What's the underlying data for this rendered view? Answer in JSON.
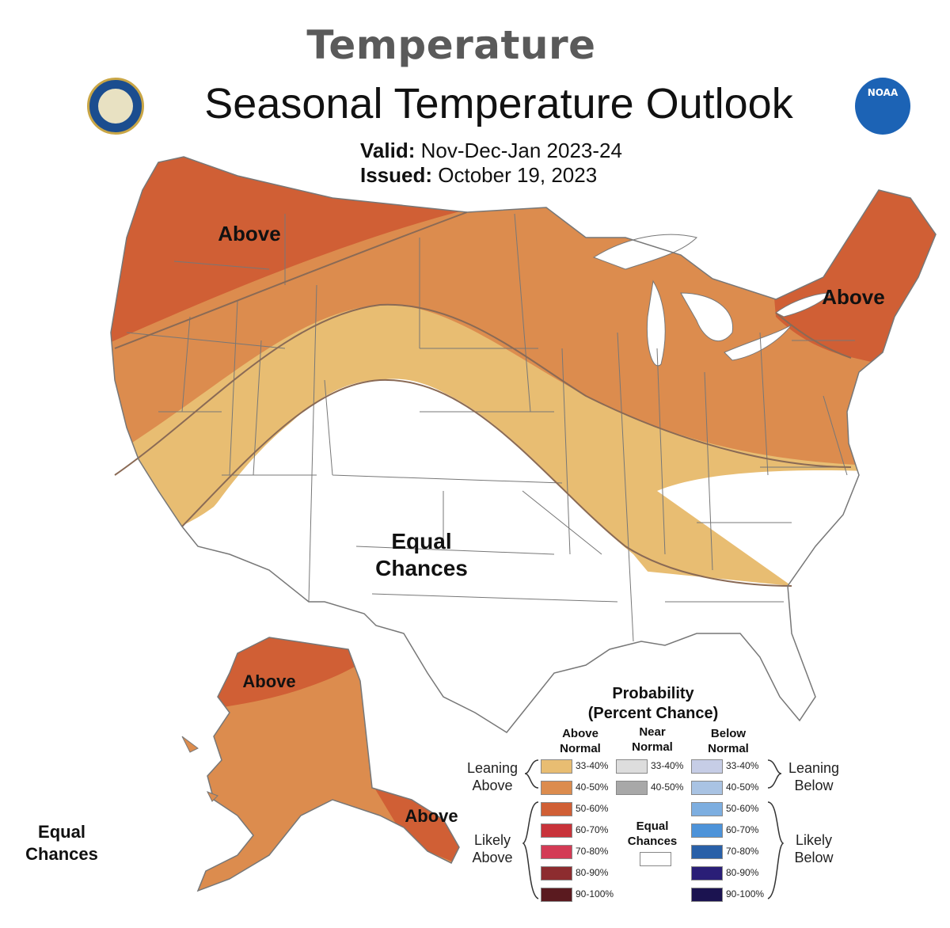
{
  "header": {
    "caption": "Temperature",
    "title": "Seasonal Temperature Outlook",
    "valid_label": "Valid:",
    "valid_value": "Nov-Dec-Jan 2023-24",
    "issued_label": "Issued:",
    "issued_value": "October 19, 2023"
  },
  "logos": {
    "left": "doc-seal-icon",
    "right": "noaa-logo-icon",
    "right_text": "NOAA"
  },
  "map_labels": {
    "west_above": "Above",
    "northeast_above": "Above",
    "equal_chances_line1": "Equal",
    "equal_chances_line2": "Chances",
    "alaska_north_above": "Above",
    "alaska_south_above": "Above",
    "alaska_equal_line1": "Equal",
    "alaska_equal_line2": "Chances"
  },
  "colors": {
    "above_33_40": "#e8bd72",
    "above_40_50": "#dc8c4e",
    "above_50_60": "#d05f35",
    "above_60_70": "#c8333a",
    "above_70_80": "#d33b55",
    "above_80_90": "#8d2c2f",
    "above_90_100": "#5a1a1f",
    "near_33_40": "#dddddd",
    "near_40_50": "#a8a8a8",
    "below_33_40": "#c6cde6",
    "below_40_50": "#a9c3e3",
    "below_50_60": "#7daee0",
    "below_60_70": "#4d93d9",
    "below_70_80": "#2960a8",
    "below_80_90": "#2a1e77",
    "below_90_100": "#1b1350",
    "state_lines": "#777777"
  },
  "legend": {
    "title_line1": "Probability",
    "title_line2": "(Percent Chance)",
    "col_above": [
      "Above",
      "Normal"
    ],
    "col_near": [
      "Near",
      "Normal"
    ],
    "col_below": [
      "Below",
      "Normal"
    ],
    "leaning_above": [
      "Leaning",
      "Above"
    ],
    "likely_above": [
      "Likely",
      "Above"
    ],
    "leaning_below": [
      "Leaning",
      "Below"
    ],
    "likely_below": [
      "Likely",
      "Below"
    ],
    "equal_chances": [
      "Equal",
      "Chances"
    ],
    "above_rows": [
      "33-40%",
      "40-50%",
      "50-60%",
      "60-70%",
      "70-80%",
      "80-90%",
      "90-100%"
    ],
    "near_rows": [
      "33-40%",
      "40-50%"
    ],
    "below_rows": [
      "33-40%",
      "40-50%",
      "50-60%",
      "60-70%",
      "70-80%",
      "80-90%",
      "90-100%"
    ]
  }
}
